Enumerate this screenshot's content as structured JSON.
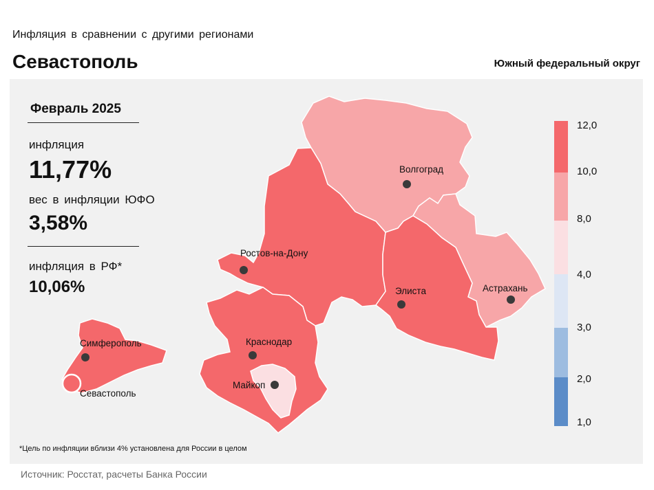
{
  "header": {
    "subtitle": "Инфляция в сравнении с другими регионами",
    "title": "Севастополь",
    "district": "Южный федеральный округ"
  },
  "stats": {
    "period": "Февраль 2025",
    "inflation_label": "инфляция",
    "inflation_value": "11,77%",
    "weight_label": "вес в инфляции ЮФО",
    "weight_value": "3,58%",
    "rf_label": "инфляция в РФ*",
    "rf_value": "10,06%"
  },
  "regions": [
    {
      "name": "Волгоград",
      "fill": "#f7a6a8"
    },
    {
      "name": "Астрахань",
      "fill": "#f7a6a8"
    },
    {
      "name": "Ростов-на-Дону",
      "fill": "#f4686b"
    },
    {
      "name": "Элиста",
      "fill": "#f4686b"
    },
    {
      "name": "Краснодар",
      "fill": "#f4686b"
    },
    {
      "name": "Майкоп",
      "fill": "#fbdfe2"
    },
    {
      "name": "Симферополь",
      "fill": "#f4686b"
    },
    {
      "name": "Севастополь",
      "fill": "#f4686b"
    }
  ],
  "legend": {
    "ticks": [
      "12,0",
      "10,0",
      "8,0",
      "4,0",
      "3,0",
      "2,0",
      "1,0"
    ],
    "colors": [
      "#f4686b",
      "#f7a6a8",
      "#fbdfe2",
      "#dde6f4",
      "#9dbce0",
      "#5b8cc8"
    ]
  },
  "footnote": "*Цель по инфляции вблизи 4% установлена для России в целом",
  "source": "Источник: Росстат, расчеты Банка России"
}
